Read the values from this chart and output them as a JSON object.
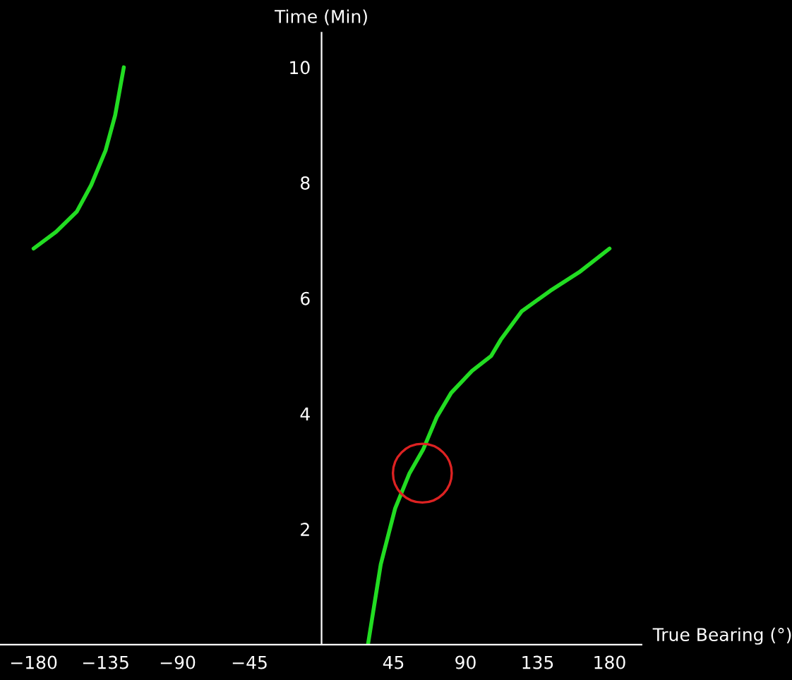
{
  "chart_data": {
    "type": "line",
    "xlabel": "True Bearing (°)",
    "ylabel": "Time (Min)",
    "xlim": [
      -201,
      200
    ],
    "ylim": [
      0,
      10.6
    ],
    "xticks": [
      -180,
      -135,
      -90,
      -45,
      45,
      90,
      135,
      180
    ],
    "yticks": [
      2,
      4,
      6,
      8,
      10
    ],
    "grid": false,
    "legend": false,
    "series": [
      {
        "color": "#22dd22",
        "x": [
          -180,
          -166,
          -153,
          -144,
          -135,
          -129,
          -123.6
        ],
        "values": [
          6.86,
          7.15,
          7.5,
          7.96,
          8.56,
          9.17,
          10.0
        ]
      },
      {
        "color": "#22dd22",
        "x": [
          29,
          37,
          46,
          55,
          63.5,
          72,
          81,
          94,
          106,
          112,
          125,
          143,
          161,
          180
        ],
        "values": [
          0,
          1.39,
          2.36,
          2.97,
          3.38,
          3.94,
          4.36,
          4.74,
          5.0,
          5.28,
          5.77,
          6.13,
          6.45,
          6.86
        ]
      },
      {
        "type": "scatter",
        "color": "#dd2222",
        "marker": "circle",
        "x": [
          63
        ],
        "values": [
          2.97
        ]
      }
    ]
  }
}
